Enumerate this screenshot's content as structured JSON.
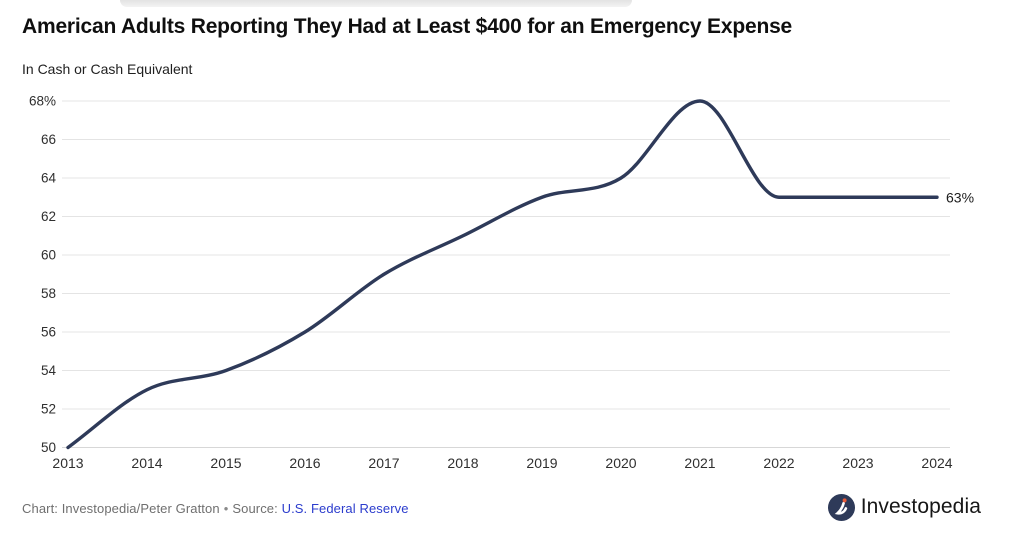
{
  "page": {
    "title": "American Adults Reporting They Had at Least $400 for an Emergency Expense",
    "subtitle": "In Cash or Cash Equivalent"
  },
  "footer": {
    "credit": "Chart: Investopedia/Peter Gratton",
    "separator": "•",
    "source_label": "Source:",
    "source_link": "U.S. Federal Reserve",
    "logo_text": "Investopedia"
  },
  "colors": {
    "line": "#2e3a59",
    "grid": "#e4e4e4",
    "baseline": "#d7d7d7",
    "tick_label": "#2f2f2f",
    "end_label": "#1c1c1c",
    "footer_text": "#6f6f6f",
    "link": "#2b3ccd",
    "logo_navy": "#2e3a59",
    "logo_dot": "#e85a38"
  },
  "chart_data": {
    "type": "line",
    "title": "American Adults Reporting They Had at Least $400 for an Emergency Expense",
    "subtitle": "In Cash or Cash Equivalent",
    "x": [
      2013,
      2014,
      2015,
      2016,
      2017,
      2018,
      2019,
      2020,
      2021,
      2022,
      2023,
      2024
    ],
    "values": [
      50,
      53,
      54,
      56,
      59,
      61,
      63,
      64,
      68,
      63,
      63,
      63
    ],
    "x_tick_labels": [
      "2013",
      "2014",
      "2015",
      "2016",
      "2017",
      "2018",
      "2019",
      "2020",
      "2021",
      "2022",
      "2023",
      "2024"
    ],
    "y_ticks": [
      {
        "value": 68,
        "label": "68%"
      },
      {
        "value": 66,
        "label": "66"
      },
      {
        "value": 64,
        "label": "64"
      },
      {
        "value": 62,
        "label": "62"
      },
      {
        "value": 60,
        "label": "60"
      },
      {
        "value": 58,
        "label": "58"
      },
      {
        "value": 56,
        "label": "56"
      },
      {
        "value": 54,
        "label": "54"
      },
      {
        "value": 52,
        "label": "52"
      },
      {
        "value": 50,
        "label": "50"
      }
    ],
    "ylim": [
      50,
      68
    ],
    "end_label": "63%",
    "grid": true,
    "legend": "none",
    "curve": "monotone"
  }
}
